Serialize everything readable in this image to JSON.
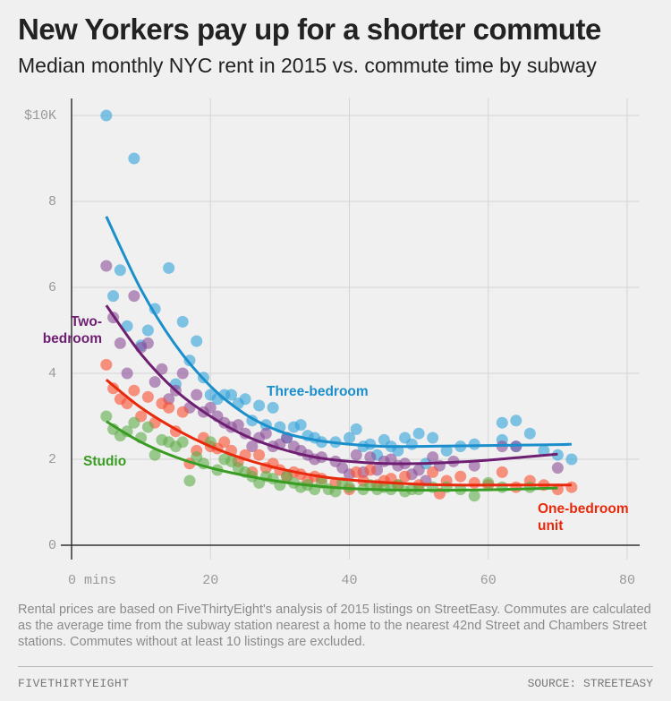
{
  "chart_data": {
    "type": "scatter",
    "title": "New Yorkers pay up for a shorter commute",
    "subtitle": "Median monthly NYC rent in 2015 vs. commute time by subway",
    "note": "Rental prices are based on FiveThirtyEight's analysis of 2015 listings on StreetEasy. Commutes are calculated as the average time from the subway station nearest a home to the nearest 42nd Street and Chambers Street stations. Commutes without at least 10 listings are excluded.",
    "brand": "FIVETHIRTYEIGHT",
    "source": "SOURCE: STREETEASY",
    "xlim": [
      0,
      80
    ],
    "xticks": [
      {
        "value": 0,
        "label": "0 mins"
      },
      20,
      40,
      60,
      80
    ],
    "ylim": [
      0,
      10
    ],
    "yticks": [
      0,
      2,
      4,
      6,
      8,
      {
        "value": 10,
        "label": "$10K"
      }
    ],
    "grid": true,
    "series": [
      {
        "name": "Three-bedroom",
        "color": "#30a2da",
        "line_color": "#1b8fcc",
        "x": [
          5,
          9,
          6,
          7,
          8,
          10,
          11,
          12,
          14,
          15,
          16,
          17,
          18,
          19,
          20,
          21,
          22,
          23,
          24,
          25,
          26,
          27,
          28,
          29,
          30,
          31,
          32,
          33,
          34,
          35,
          36,
          38,
          40,
          41,
          42,
          43,
          44,
          45,
          46,
          47,
          48,
          49,
          50,
          51,
          52,
          54,
          56,
          58,
          62,
          62,
          64,
          64,
          66,
          68,
          70,
          72
        ],
        "values": [
          10,
          9,
          5.8,
          6.4,
          5.1,
          4.65,
          5,
          5.5,
          6.45,
          3.75,
          5.2,
          4.3,
          4.75,
          3.9,
          3.5,
          3.4,
          3.5,
          3.5,
          3.3,
          3.4,
          2.9,
          3.25,
          2.8,
          3.2,
          2.75,
          2.5,
          2.75,
          2.8,
          2.55,
          2.5,
          2.4,
          2.4,
          2.5,
          2.7,
          2.3,
          2.35,
          2.1,
          2.45,
          2.3,
          2.2,
          2.5,
          2.35,
          2.6,
          1.9,
          2.5,
          2.2,
          2.3,
          2.35,
          2.85,
          2.45,
          2.9,
          2.3,
          2.6,
          2.2,
          2.1,
          2.0
        ],
        "trend_x": [
          5,
          10,
          15,
          20,
          25,
          30,
          35,
          40,
          45,
          50,
          55,
          60,
          65,
          70,
          72
        ],
        "trend_values": [
          7.65,
          5.95,
          4.65,
          3.7,
          3.05,
          2.65,
          2.45,
          2.35,
          2.3,
          2.3,
          2.31,
          2.32,
          2.33,
          2.34,
          2.35
        ]
      },
      {
        "name": "Two-bedroom",
        "color": "#8e4f9a",
        "line_color": "#6e1f72",
        "x": [
          5,
          6,
          7,
          8,
          9,
          10,
          11,
          12,
          13,
          14,
          15,
          16,
          17,
          18,
          19,
          20,
          21,
          22,
          23,
          24,
          25,
          26,
          27,
          28,
          29,
          30,
          31,
          32,
          33,
          34,
          35,
          36,
          38,
          39,
          40,
          41,
          42,
          43,
          44,
          45,
          46,
          47,
          48,
          49,
          50,
          51,
          52,
          53,
          55,
          58,
          62,
          64,
          70
        ],
        "values": [
          6.5,
          5.3,
          4.7,
          4.0,
          5.8,
          4.6,
          4.7,
          3.8,
          4.1,
          3.4,
          3.6,
          4.0,
          3.2,
          3.5,
          3.1,
          3.2,
          3.0,
          2.85,
          2.75,
          2.8,
          2.6,
          2.3,
          2.5,
          2.6,
          2.3,
          2.35,
          2.5,
          2.3,
          2.2,
          2.1,
          2.0,
          2.05,
          1.95,
          1.8,
          1.65,
          2.1,
          1.7,
          2.05,
          1.75,
          1.95,
          2.0,
          1.85,
          1.9,
          1.65,
          1.75,
          1.5,
          2.05,
          1.85,
          1.95,
          1.85,
          2.3,
          2.3,
          1.8
        ],
        "trend_x": [
          5,
          10,
          15,
          20,
          25,
          30,
          35,
          40,
          45,
          50,
          55,
          60,
          65,
          70
        ],
        "trend_values": [
          5.58,
          4.45,
          3.6,
          3.0,
          2.55,
          2.25,
          2.05,
          1.95,
          1.9,
          1.9,
          1.93,
          1.98,
          2.05,
          2.12
        ]
      },
      {
        "name": "One-bedroom unit",
        "color": "#fc4f30",
        "line_color": "#e8290b",
        "x": [
          5,
          6,
          7,
          8,
          9,
          10,
          11,
          12,
          13,
          14,
          15,
          16,
          17,
          18,
          19,
          20,
          21,
          22,
          23,
          24,
          25,
          26,
          27,
          28,
          29,
          30,
          31,
          32,
          33,
          34,
          35,
          36,
          38,
          40,
          41,
          42,
          43,
          44,
          45,
          46,
          47,
          48,
          50,
          52,
          53,
          54,
          56,
          58,
          60,
          62,
          64,
          66,
          68,
          70,
          72
        ],
        "values": [
          4.2,
          3.65,
          3.4,
          3.3,
          3.6,
          3.0,
          3.45,
          2.85,
          3.3,
          3.2,
          2.65,
          3.1,
          1.9,
          2.2,
          2.5,
          2.3,
          2.25,
          2.4,
          2.2,
          1.95,
          2.1,
          1.7,
          2.1,
          1.8,
          1.9,
          1.75,
          1.6,
          1.7,
          1.65,
          1.5,
          1.6,
          1.55,
          1.45,
          1.3,
          1.7,
          1.5,
          1.75,
          1.4,
          1.5,
          1.55,
          1.4,
          1.6,
          1.4,
          1.7,
          1.2,
          1.5,
          1.6,
          1.45,
          1.4,
          1.7,
          1.35,
          1.5,
          1.4,
          1.3,
          1.35
        ],
        "trend_x": [
          5,
          10,
          15,
          20,
          25,
          30,
          35,
          40,
          45,
          50,
          55,
          60,
          65,
          70,
          72
        ],
        "trend_values": [
          3.85,
          3.2,
          2.7,
          2.3,
          2.0,
          1.78,
          1.62,
          1.52,
          1.46,
          1.42,
          1.4,
          1.4,
          1.4,
          1.4,
          1.4
        ]
      },
      {
        "name": "Studio",
        "color": "#5fae4a",
        "line_color": "#3a9d23",
        "x": [
          5,
          6,
          7,
          8,
          9,
          10,
          11,
          12,
          13,
          14,
          15,
          16,
          17,
          18,
          19,
          20,
          21,
          22,
          23,
          24,
          25,
          26,
          27,
          28,
          29,
          30,
          31,
          32,
          33,
          34,
          35,
          36,
          37,
          38,
          39,
          40,
          42,
          43,
          44,
          45,
          46,
          47,
          48,
          49,
          50,
          52,
          54,
          56,
          58,
          60,
          62,
          66
        ],
        "values": [
          3.0,
          2.7,
          2.55,
          2.65,
          2.85,
          2.5,
          2.75,
          2.1,
          2.45,
          2.4,
          2.3,
          2.4,
          1.5,
          2.05,
          1.9,
          2.4,
          1.75,
          2.0,
          1.95,
          1.8,
          1.7,
          1.6,
          1.45,
          1.6,
          1.55,
          1.4,
          1.6,
          1.45,
          1.35,
          1.4,
          1.3,
          1.45,
          1.3,
          1.25,
          1.45,
          1.35,
          1.3,
          1.4,
          1.3,
          1.35,
          1.3,
          1.4,
          1.25,
          1.3,
          1.3,
          1.35,
          1.35,
          1.3,
          1.15,
          1.45,
          1.35,
          1.35
        ],
        "trend_x": [
          5,
          10,
          15,
          20,
          25,
          30,
          35,
          40,
          45,
          50,
          55,
          60,
          65,
          70
        ],
        "trend_values": [
          2.88,
          2.4,
          2.05,
          1.8,
          1.62,
          1.48,
          1.38,
          1.32,
          1.29,
          1.28,
          1.28,
          1.29,
          1.31,
          1.33
        ]
      }
    ]
  }
}
